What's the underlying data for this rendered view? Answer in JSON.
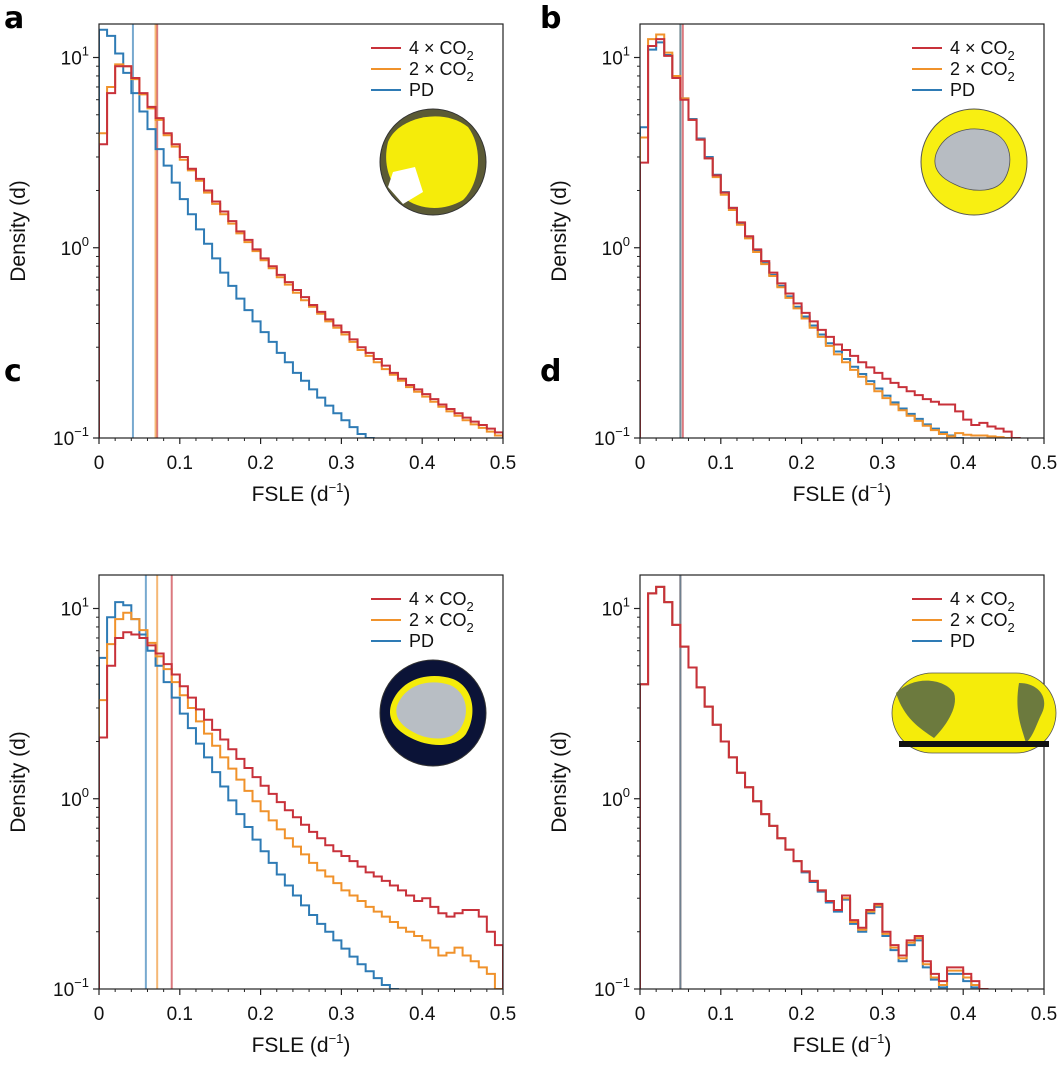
{
  "figure": {
    "colors": {
      "4xCO2": "#c8313a",
      "2xCO2": "#f0922b",
      "PD": "#2e7bb5"
    },
    "legend_entries": [
      "4 × CO2",
      "2 × CO2",
      "PD"
    ]
  },
  "chart_data": [
    {
      "panel": "a",
      "type": "line",
      "step": true,
      "region_icon": "arctic-globe-icon",
      "xlabel": "FSLE (d−1)",
      "ylabel": "Density (d)",
      "xlim": [
        0,
        0.5
      ],
      "ylim": [
        0.1,
        15
      ],
      "yscale": "log",
      "xticks": [
        "0",
        "0.1",
        "0.2",
        "0.3",
        "0.4",
        "0.5"
      ],
      "yticks": [
        "10−1",
        "100",
        "101"
      ],
      "bin_width": 0.01,
      "series": [
        {
          "name": "4 × CO2",
          "color": "#c8313a",
          "vline": 0.072,
          "values": [
            3.5,
            6.5,
            9.0,
            9.0,
            7.8,
            6.5,
            5.5,
            4.8,
            4.0,
            3.5,
            3.0,
            2.6,
            2.3,
            2.0,
            1.75,
            1.55,
            1.38,
            1.22,
            1.1,
            0.98,
            0.88,
            0.8,
            0.72,
            0.66,
            0.6,
            0.55,
            0.5,
            0.46,
            0.42,
            0.39,
            0.36,
            0.33,
            0.3,
            0.28,
            0.26,
            0.24,
            0.22,
            0.205,
            0.19,
            0.18,
            0.17,
            0.16,
            0.15,
            0.142,
            0.135,
            0.128,
            0.122,
            0.117,
            0.112,
            0.107
          ]
        },
        {
          "name": "2 × CO2",
          "color": "#f0922b",
          "vline": 0.07,
          "values": [
            4.0,
            7.0,
            9.2,
            9.0,
            7.7,
            6.4,
            5.4,
            4.7,
            3.9,
            3.4,
            2.9,
            2.55,
            2.25,
            1.95,
            1.7,
            1.5,
            1.34,
            1.19,
            1.07,
            0.96,
            0.86,
            0.78,
            0.7,
            0.64,
            0.58,
            0.53,
            0.49,
            0.45,
            0.41,
            0.38,
            0.35,
            0.32,
            0.29,
            0.27,
            0.25,
            0.23,
            0.215,
            0.2,
            0.185,
            0.175,
            0.165,
            0.155,
            0.146,
            0.138,
            0.131,
            0.124,
            0.118,
            0.113,
            0.108,
            0.103
          ]
        },
        {
          "name": "PD",
          "color": "#2e7bb5",
          "vline": 0.042,
          "values": [
            14.0,
            13.0,
            10.5,
            8.3,
            6.5,
            5.2,
            4.2,
            3.3,
            2.7,
            2.2,
            1.8,
            1.5,
            1.25,
            1.05,
            0.88,
            0.74,
            0.63,
            0.54,
            0.47,
            0.41,
            0.36,
            0.32,
            0.28,
            0.25,
            0.22,
            0.2,
            0.18,
            0.163,
            0.148,
            0.135,
            0.124,
            0.114,
            0.105,
            0.098
          ]
        }
      ]
    },
    {
      "panel": "b",
      "type": "line",
      "step": true,
      "region_icon": "antarctic-globe-icon",
      "xlabel": "FSLE (d−1)",
      "ylabel": "Density (d)",
      "xlim": [
        0,
        0.5
      ],
      "ylim": [
        0.1,
        15
      ],
      "yscale": "log",
      "xticks": [
        "0",
        "0.1",
        "0.2",
        "0.3",
        "0.4",
        "0.5"
      ],
      "yticks": [
        "10−1",
        "100",
        "101"
      ],
      "bin_width": 0.01,
      "series": [
        {
          "name": "4 × CO2",
          "color": "#c8313a",
          "vline": 0.053,
          "values": [
            2.8,
            11.5,
            12.5,
            10.2,
            7.8,
            6.0,
            4.7,
            3.7,
            2.95,
            2.4,
            1.95,
            1.62,
            1.36,
            1.15,
            0.98,
            0.85,
            0.74,
            0.65,
            0.575,
            0.51,
            0.455,
            0.41,
            0.37,
            0.34,
            0.31,
            0.29,
            0.27,
            0.25,
            0.235,
            0.22,
            0.205,
            0.195,
            0.185,
            0.176,
            0.168,
            0.16,
            0.155,
            0.15,
            0.15,
            0.138,
            0.125,
            0.117,
            0.12,
            0.115,
            0.112,
            0.108,
            0.1
          ]
        },
        {
          "name": "2 × CO2",
          "color": "#f0922b",
          "vline": 0.05,
          "values": [
            3.8,
            12.5,
            13.2,
            10.6,
            8.0,
            6.1,
            4.7,
            3.7,
            2.95,
            2.35,
            1.9,
            1.58,
            1.32,
            1.12,
            0.95,
            0.82,
            0.71,
            0.62,
            0.545,
            0.48,
            0.425,
            0.38,
            0.34,
            0.305,
            0.275,
            0.25,
            0.228,
            0.21,
            0.192,
            0.176,
            0.162,
            0.15,
            0.14,
            0.131,
            0.123,
            0.116,
            0.11,
            0.105,
            0.102,
            0.106,
            0.104,
            0.103,
            0.103,
            0.102,
            0.101,
            0.1
          ]
        },
        {
          "name": "PD",
          "color": "#2e7bb5",
          "vline": 0.05,
          "values": [
            4.3,
            11.0,
            12.0,
            10.3,
            7.9,
            6.1,
            4.75,
            3.75,
            3.0,
            2.42,
            1.96,
            1.62,
            1.35,
            1.14,
            0.97,
            0.83,
            0.72,
            0.63,
            0.555,
            0.49,
            0.435,
            0.39,
            0.35,
            0.315,
            0.285,
            0.26,
            0.237,
            0.217,
            0.199,
            0.182,
            0.167,
            0.154,
            0.143,
            0.134,
            0.126,
            0.118,
            0.112,
            0.107,
            0.103,
            0.1
          ]
        }
      ]
    },
    {
      "panel": "c",
      "type": "line",
      "step": true,
      "region_icon": "antarctic-coast-globe-icon",
      "xlabel": "FSLE (d−1)",
      "ylabel": "Density (d)",
      "xlim": [
        0,
        0.5
      ],
      "ylim": [
        0.1,
        15
      ],
      "yscale": "log",
      "xticks": [
        "0",
        "0.1",
        "0.2",
        "0.3",
        "0.4",
        "0.5"
      ],
      "yticks": [
        "10−1",
        "100",
        "101"
      ],
      "bin_width": 0.01,
      "series": [
        {
          "name": "4 × CO2",
          "color": "#c8313a",
          "vline": 0.09,
          "values": [
            2.1,
            5.0,
            7.0,
            7.5,
            7.3,
            7.0,
            6.4,
            5.8,
            5.1,
            4.5,
            3.9,
            3.4,
            2.95,
            2.6,
            2.3,
            2.05,
            1.82,
            1.62,
            1.45,
            1.3,
            1.17,
            1.06,
            0.96,
            0.87,
            0.8,
            0.73,
            0.67,
            0.62,
            0.57,
            0.53,
            0.5,
            0.47,
            0.44,
            0.41,
            0.39,
            0.37,
            0.35,
            0.33,
            0.31,
            0.29,
            0.3,
            0.27,
            0.25,
            0.24,
            0.25,
            0.26,
            0.26,
            0.24,
            0.2,
            0.17
          ]
        },
        {
          "name": "2 × CO2",
          "color": "#f0922b",
          "vline": 0.072,
          "values": [
            3.3,
            6.5,
            8.8,
            9.5,
            8.8,
            7.7,
            6.6,
            5.6,
            4.8,
            4.1,
            3.5,
            3.0,
            2.55,
            2.2,
            1.9,
            1.65,
            1.44,
            1.26,
            1.1,
            0.97,
            0.86,
            0.77,
            0.69,
            0.62,
            0.56,
            0.51,
            0.46,
            0.42,
            0.39,
            0.36,
            0.33,
            0.31,
            0.29,
            0.27,
            0.255,
            0.24,
            0.225,
            0.21,
            0.2,
            0.19,
            0.18,
            0.165,
            0.15,
            0.155,
            0.165,
            0.15,
            0.14,
            0.13,
            0.12,
            0.1
          ]
        },
        {
          "name": "PD",
          "color": "#2e7bb5",
          "vline": 0.058,
          "values": [
            5.5,
            9.0,
            10.8,
            10.4,
            8.8,
            7.3,
            6.0,
            5.0,
            4.1,
            3.4,
            2.8,
            2.35,
            1.95,
            1.65,
            1.38,
            1.16,
            0.98,
            0.83,
            0.71,
            0.61,
            0.53,
            0.46,
            0.4,
            0.35,
            0.31,
            0.275,
            0.245,
            0.22,
            0.2,
            0.18,
            0.163,
            0.148,
            0.135,
            0.124,
            0.114,
            0.105,
            0.1
          ]
        }
      ]
    },
    {
      "panel": "d",
      "type": "line",
      "step": true,
      "region_icon": "global-map-icon",
      "xlabel": "FSLE (d−1)",
      "ylabel": "Density (d)",
      "xlim": [
        0,
        0.5
      ],
      "ylim": [
        0.1,
        15
      ],
      "yscale": "log",
      "xticks": [
        "0",
        "0.1",
        "0.2",
        "0.3",
        "0.4",
        "0.5"
      ],
      "yticks": [
        "10−1",
        "100",
        "101"
      ],
      "bin_width": 0.01,
      "series": [
        {
          "name": "4 × CO2",
          "color": "#c8313a",
          "vline": 0.05,
          "values": [
            4.0,
            12.0,
            13.0,
            10.8,
            8.2,
            6.3,
            4.9,
            3.85,
            3.05,
            2.45,
            2.0,
            1.65,
            1.37,
            1.15,
            0.97,
            0.83,
            0.72,
            0.62,
            0.54,
            0.47,
            0.415,
            0.37,
            0.33,
            0.29,
            0.26,
            0.31,
            0.23,
            0.21,
            0.26,
            0.28,
            0.2,
            0.17,
            0.15,
            0.18,
            0.19,
            0.14,
            0.12,
            0.11,
            0.13,
            0.13,
            0.12,
            0.11,
            0.1
          ]
        },
        {
          "name": "2 × CO2",
          "color": "#f0922b",
          "vline": 0.05,
          "values": [
            4.0,
            12.0,
            13.0,
            10.8,
            8.2,
            6.3,
            4.9,
            3.85,
            3.05,
            2.45,
            2.0,
            1.65,
            1.37,
            1.15,
            0.97,
            0.83,
            0.72,
            0.62,
            0.54,
            0.47,
            0.415,
            0.37,
            0.33,
            0.29,
            0.26,
            0.3,
            0.225,
            0.205,
            0.255,
            0.275,
            0.195,
            0.165,
            0.145,
            0.175,
            0.185,
            0.135,
            0.115,
            0.105,
            0.125,
            0.125,
            0.115,
            0.105,
            0.1
          ]
        },
        {
          "name": "PD",
          "color": "#2e7bb5",
          "vline": 0.05,
          "values": [
            4.0,
            12.0,
            13.0,
            10.8,
            8.2,
            6.3,
            4.9,
            3.85,
            3.05,
            2.45,
            2.0,
            1.65,
            1.37,
            1.15,
            0.97,
            0.83,
            0.72,
            0.62,
            0.54,
            0.47,
            0.41,
            0.365,
            0.325,
            0.285,
            0.255,
            0.295,
            0.22,
            0.2,
            0.25,
            0.27,
            0.19,
            0.16,
            0.14,
            0.17,
            0.18,
            0.13,
            0.112,
            0.102,
            0.12,
            0.12,
            0.11,
            0.102,
            0.1
          ]
        }
      ]
    }
  ]
}
